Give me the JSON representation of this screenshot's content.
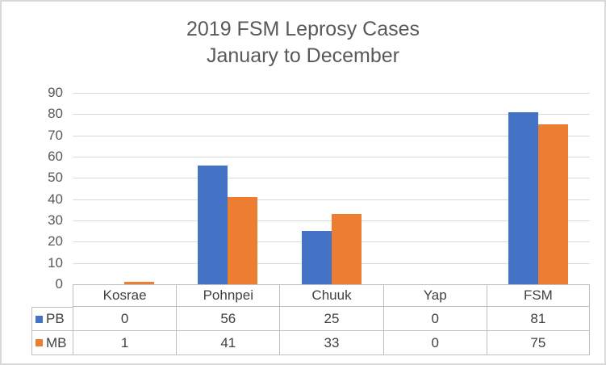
{
  "chart": {
    "title_line1": "2019 FSM Leprosy Cases",
    "title_line2": "January to December"
  },
  "chart_data": {
    "type": "bar",
    "title": "2019 FSM Leprosy Cases January to December",
    "xlabel": "",
    "ylabel": "",
    "categories": [
      "Kosrae",
      "Pohnpei",
      "Chuuk",
      "Yap",
      "FSM"
    ],
    "series": [
      {
        "name": "PB",
        "color": "#4472C4",
        "values": [
          0,
          56,
          25,
          0,
          81
        ]
      },
      {
        "name": "MB",
        "color": "#ED7D31",
        "values": [
          1,
          41,
          33,
          0,
          75
        ]
      }
    ],
    "ylim": [
      0,
      90
    ],
    "ytick_step": 10,
    "grid": true,
    "legend_position": "data-table-left"
  },
  "colors": {
    "title_text": "#595959",
    "axis_text": "#595959",
    "table_text": "#404040",
    "gridline": "#D9D9D9",
    "table_border": "#BFBFBF",
    "outer_border": "#D9D9D9",
    "background": "#FFFFFF"
  }
}
